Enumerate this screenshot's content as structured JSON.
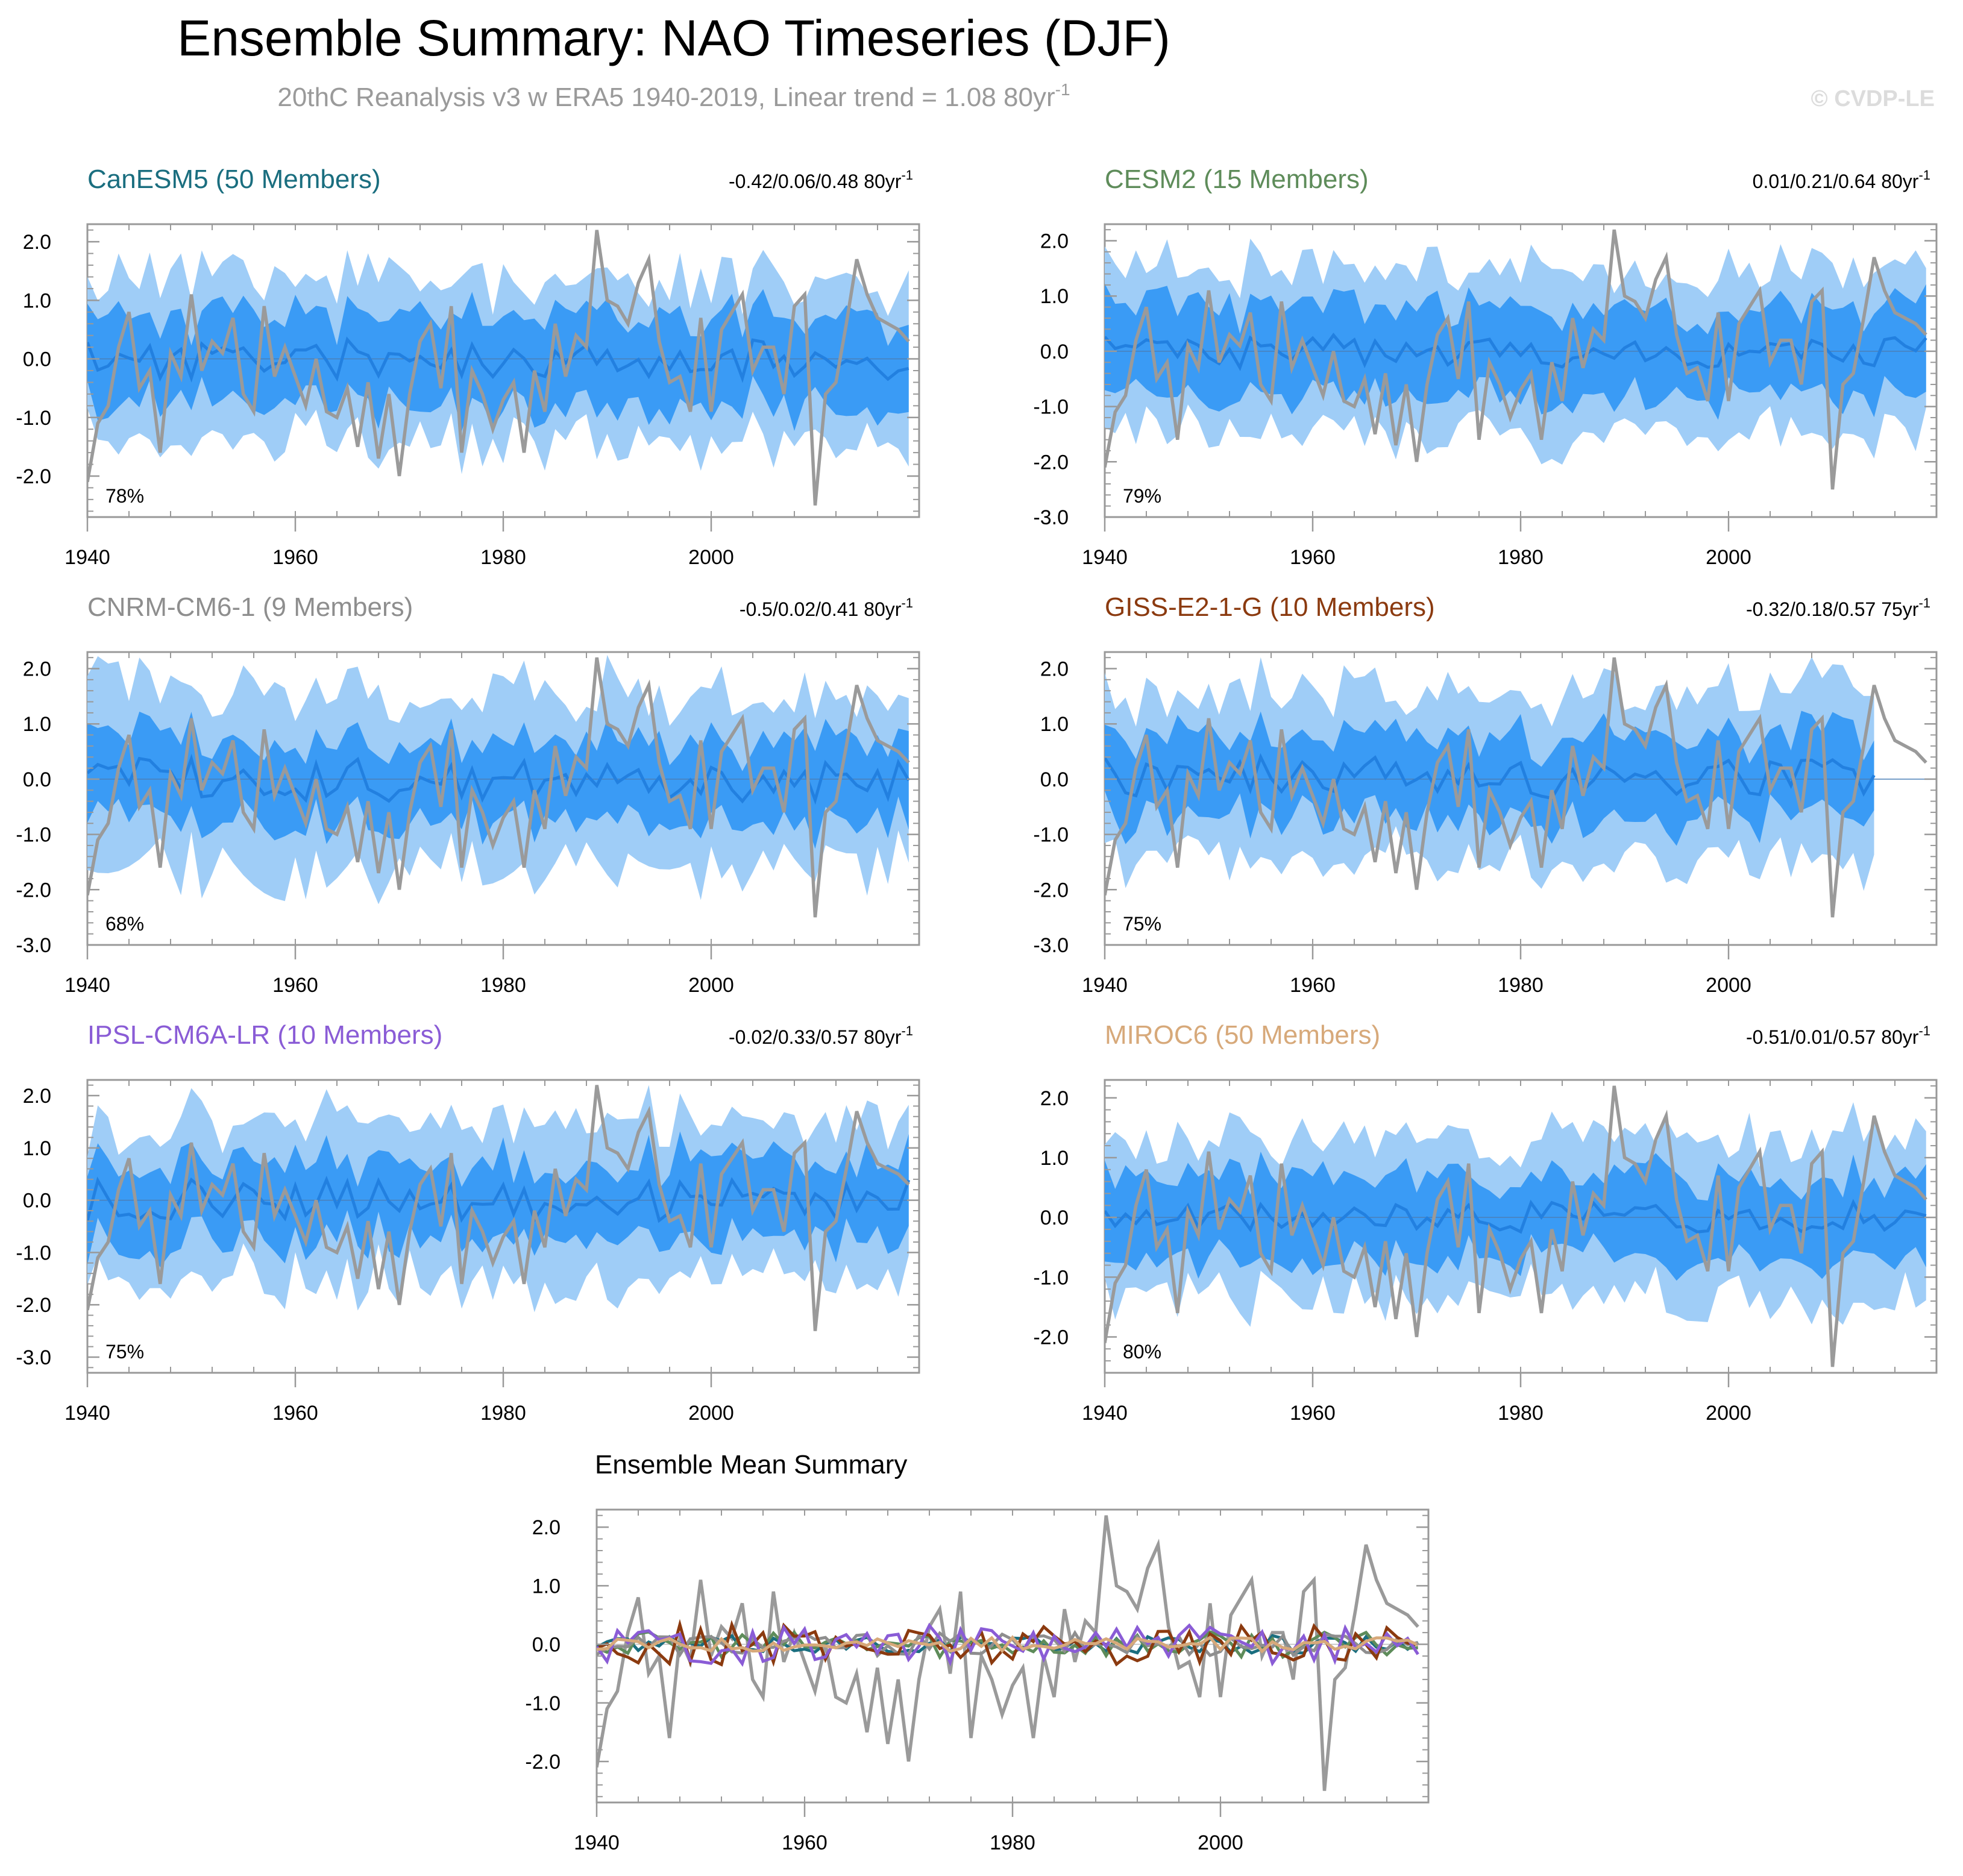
{
  "title": "Ensemble Summary: NAO Timeseries (DJF)",
  "subtitle": {
    "text": "20thC Reanalysis v3 w ERA5 1940-2019, Linear trend = 1.08 80yr",
    "superscript": "-1"
  },
  "watermark": "© CVDP-LE",
  "colors": {
    "observed": "#9a9a9a",
    "band_outer": "#9fcdf7",
    "band_inner": "#3a9bf5",
    "ens_mean": "#2280e0",
    "axis": "#999999"
  },
  "chart_data": [
    {
      "id": "canesm5",
      "type": "area",
      "title": "CanESM5 (50 Members)",
      "title_color": "#1a6e7f",
      "trend_label": "-0.42/0.06/0.48 80yr",
      "trend_sup": "-1",
      "percent_label": "78%",
      "x_start": 1940,
      "x_end": 2019,
      "ylim": [
        -2.7,
        2.3
      ],
      "yticks": [
        2.0,
        1.0,
        0.0,
        -1.0,
        -2.0
      ],
      "ytick_labels": [
        "2.0",
        "1.0",
        "0.0",
        "-1.0",
        "-2.0"
      ],
      "xticks": [
        1940,
        1960,
        1980,
        2000
      ],
      "xtick_labels": [
        "1940",
        "1960",
        "1980",
        "2000"
      ],
      "amp": 0.35,
      "spread_inner": 0.75,
      "spread_outer": 1.4,
      "seed": 11
    },
    {
      "id": "cesm2",
      "type": "area",
      "title": "CESM2 (15 Members)",
      "title_color": "#5e8c5a",
      "trend_label": "0.01/0.21/0.64 80yr",
      "trend_sup": "-1",
      "percent_label": "79%",
      "x_start": 1940,
      "x_end": 2019,
      "ylim": [
        -3.0,
        2.3
      ],
      "yticks": [
        2.0,
        1.0,
        0.0,
        -1.0,
        -2.0,
        -3.0
      ],
      "ytick_labels": [
        "2.0",
        "1.0",
        "0.0",
        "-1.0",
        "-2.0",
        "-3.0"
      ],
      "xticks": [
        1940,
        1960,
        1980,
        2000
      ],
      "xtick_labels": [
        "1940",
        "1960",
        "1980",
        "2000"
      ],
      "amp": 0.3,
      "spread_inner": 0.8,
      "spread_outer": 1.5,
      "seed": 23
    },
    {
      "id": "cnrm",
      "type": "area",
      "title": "CNRM-CM6-1 (9 Members)",
      "title_color": "#8e8e8e",
      "trend_label": "-0.5/0.02/0.41 80yr",
      "trend_sup": "-1",
      "percent_label": "68%",
      "x_start": 1940,
      "x_end": 2019,
      "ylim": [
        -3.0,
        2.3
      ],
      "yticks": [
        2.0,
        1.0,
        0.0,
        -1.0,
        -2.0,
        -3.0
      ],
      "ytick_labels": [
        "2.0",
        "1.0",
        "0.0",
        "-1.0",
        "-2.0",
        "-3.0"
      ],
      "xticks": [
        1940,
        1960,
        1980,
        2000
      ],
      "xtick_labels": [
        "1940",
        "1960",
        "1980",
        "2000"
      ],
      "amp": 0.4,
      "spread_inner": 0.7,
      "spread_outer": 1.6,
      "seed": 37
    },
    {
      "id": "giss",
      "type": "area",
      "title": "GISS-E2-1-G (10 Members)",
      "title_color": "#8b3a0f",
      "trend_label": "-0.32/0.18/0.57 75yr",
      "trend_sup": "-1",
      "percent_label": "75%",
      "x_start": 1940,
      "x_end": 2014,
      "ylim": [
        -3.0,
        2.3
      ],
      "yticks": [
        2.0,
        1.0,
        0.0,
        -1.0,
        -2.0,
        -3.0
      ],
      "ytick_labels": [
        "2.0",
        "1.0",
        "0.0",
        "-1.0",
        "-2.0",
        "-3.0"
      ],
      "xticks": [
        1940,
        1960,
        1980,
        2000
      ],
      "xtick_labels": [
        "1940",
        "1960",
        "1980",
        "2000"
      ],
      "amp": 0.4,
      "spread_inner": 0.75,
      "spread_outer": 1.5,
      "seed": 41
    },
    {
      "id": "ipsl",
      "type": "area",
      "title": "IPSL-CM6A-LR (10 Members)",
      "title_color": "#8a5cd6",
      "trend_label": "-0.02/0.33/0.57 80yr",
      "trend_sup": "-1",
      "percent_label": "75%",
      "x_start": 1940,
      "x_end": 2019,
      "ylim": [
        -3.3,
        2.3
      ],
      "yticks": [
        2.0,
        1.0,
        0.0,
        -1.0,
        -2.0,
        -3.0
      ],
      "ytick_labels": [
        "2.0",
        "1.0",
        "0.0",
        "-1.0",
        "-2.0",
        "-3.0"
      ],
      "xticks": [
        1940,
        1960,
        1980,
        2000
      ],
      "xtick_labels": [
        "1940",
        "1960",
        "1980",
        "2000"
      ],
      "amp": 0.4,
      "spread_inner": 0.75,
      "spread_outer": 1.5,
      "seed": 53
    },
    {
      "id": "miroc6",
      "type": "area",
      "title": "MIROC6 (50 Members)",
      "title_color": "#d7a97a",
      "trend_label": "-0.51/0.01/0.57 80yr",
      "trend_sup": "-1",
      "percent_label": "80%",
      "x_start": 1940,
      "x_end": 2019,
      "ylim": [
        -2.6,
        2.3
      ],
      "yticks": [
        2.0,
        1.0,
        0.0,
        -1.0,
        -2.0
      ],
      "ytick_labels": [
        "2.0",
        "1.0",
        "0.0",
        "-1.0",
        "-2.0"
      ],
      "xticks": [
        1940,
        1960,
        1980,
        2000
      ],
      "xtick_labels": [
        "1940",
        "1960",
        "1980",
        "2000"
      ],
      "amp": 0.25,
      "spread_inner": 0.7,
      "spread_outer": 1.35,
      "seed": 67
    },
    {
      "id": "ensmean",
      "type": "line",
      "title": "Ensemble Mean Summary",
      "title_color": "#000000",
      "x_start": 1940,
      "x_end": 2019,
      "ylim": [
        -2.7,
        2.3
      ],
      "yticks": [
        2.0,
        1.0,
        0.0,
        -1.0,
        -2.0
      ],
      "ytick_labels": [
        "2.0",
        "1.0",
        "0.0",
        "-1.0",
        "-2.0"
      ],
      "xticks": [
        1940,
        1960,
        1980,
        2000
      ],
      "xtick_labels": [
        "1940",
        "1960",
        "1980",
        "2000"
      ],
      "series": [
        {
          "name": "CanESM5",
          "color": "#1a6e7f",
          "amp": 0.15,
          "seed": 11
        },
        {
          "name": "CESM2",
          "color": "#5e8c5a",
          "amp": 0.22,
          "seed": 23
        },
        {
          "name": "CNRM-CM6-1",
          "color": "#8e8e8e",
          "amp": 0.2,
          "seed": 37
        },
        {
          "name": "GISS-E2-1-G",
          "color": "#8b3a0f",
          "amp": 0.35,
          "seed": 41
        },
        {
          "name": "IPSL-CM6A-LR",
          "color": "#8a5cd6",
          "amp": 0.33,
          "seed": 53
        },
        {
          "name": "MIROC6",
          "color": "#d7a97a",
          "amp": 0.12,
          "seed": 67
        }
      ]
    }
  ],
  "observed_series": {
    "name": "20thC Reanalysis v3 w ERA5",
    "x_start": 1940,
    "values": [
      -2.1,
      -1.1,
      -0.8,
      0.2,
      0.8,
      -0.5,
      -0.2,
      -1.6,
      0.1,
      -0.3,
      1.1,
      -0.2,
      0.3,
      0.1,
      0.7,
      -0.6,
      -0.9,
      0.9,
      -0.3,
      0.2,
      -0.3,
      -0.8,
      0.0,
      -0.9,
      -1.0,
      -0.5,
      -1.5,
      -0.4,
      -1.7,
      -0.6,
      -2.0,
      -0.6,
      0.3,
      0.6,
      -0.5,
      0.9,
      -1.6,
      -0.2,
      -0.6,
      -1.2,
      -0.7,
      -0.4,
      -1.6,
      -0.2,
      -0.9,
      0.6,
      -0.3,
      0.4,
      0.2,
      2.2,
      1.0,
      0.9,
      0.6,
      1.3,
      1.7,
      0.3,
      -0.4,
      -0.3,
      -0.9,
      0.7,
      -0.9,
      0.5,
      0.8,
      1.1,
      -0.2,
      0.2,
      0.2,
      -0.6,
      0.9,
      1.1,
      -2.5,
      -0.6,
      -0.4,
      0.6,
      1.7,
      1.1,
      0.7,
      0.6,
      0.5,
      0.3
    ]
  }
}
